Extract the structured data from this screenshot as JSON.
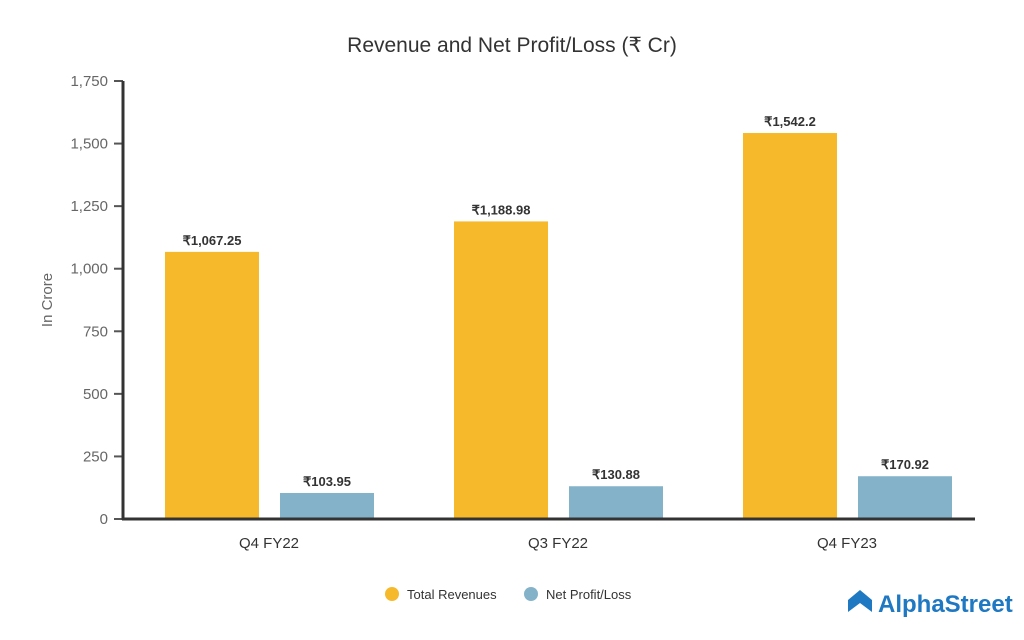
{
  "chart_data": {
    "type": "bar",
    "title": "Revenue and Net Profit/Loss (₹ Cr)",
    "ylabel": "In Crore",
    "xlabel": "",
    "ylim": [
      0,
      1750
    ],
    "yticks": [
      0,
      250,
      500,
      750,
      "1,000",
      "1,250",
      "1,500",
      "1,750"
    ],
    "ytick_values": [
      0,
      250,
      500,
      750,
      1000,
      1250,
      1500,
      1750
    ],
    "categories": [
      "Q4 FY22",
      "Q3 FY22",
      "Q4 FY23"
    ],
    "series": [
      {
        "name": "Total Revenues",
        "color": "#f6b92b",
        "values": [
          1067.25,
          1188.98,
          1542.2
        ],
        "labels": [
          "₹1,067.25",
          "₹1,188.98",
          "₹1,542.2"
        ]
      },
      {
        "name": "Net Profit/Loss",
        "color": "#84b3c9",
        "values": [
          103.95,
          130.88,
          170.92
        ],
        "labels": [
          "₹103.95",
          "₹130.88",
          "₹170.92"
        ]
      }
    ],
    "legend": "bottom-center",
    "grid": false
  },
  "branding": {
    "logo": "AlphaStreet"
  }
}
